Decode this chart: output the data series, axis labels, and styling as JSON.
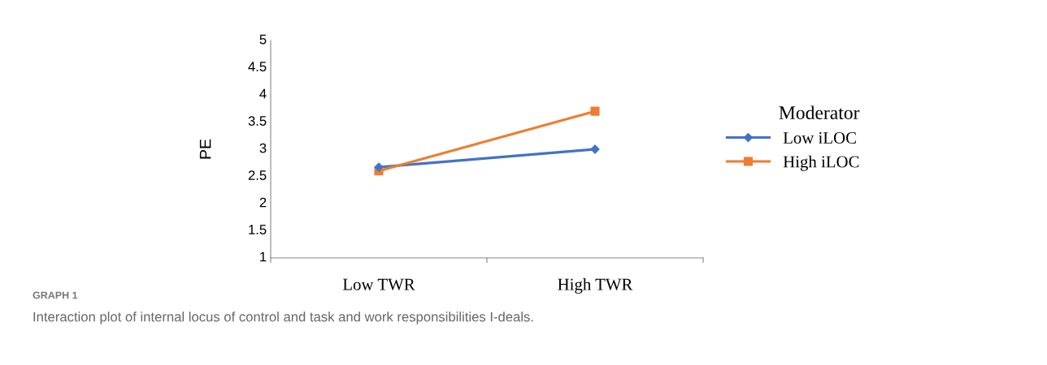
{
  "chart_data": {
    "type": "line",
    "ylabel": "PE",
    "categories": [
      "Low TWR",
      "High TWR"
    ],
    "series": [
      {
        "name": "Low iLOC",
        "color": "#4472c4",
        "values": [
          2.67,
          3.0
        ],
        "marker": "diamond"
      },
      {
        "name": "High iLOC",
        "color": "#ed7d31",
        "values": [
          2.6,
          3.7
        ],
        "marker": "square"
      }
    ],
    "ylim": [
      1,
      5
    ],
    "yticks": [
      1,
      1.5,
      2,
      2.5,
      3,
      3.5,
      4,
      4.5,
      5
    ],
    "grid": false,
    "legend": "right",
    "legend_title": "Moderator",
    "line_style": "solid",
    "annotations": [
      "GRAPH 1",
      "Interaction plot of internal locus of control and task and work responsibilities I-deals."
    ]
  }
}
